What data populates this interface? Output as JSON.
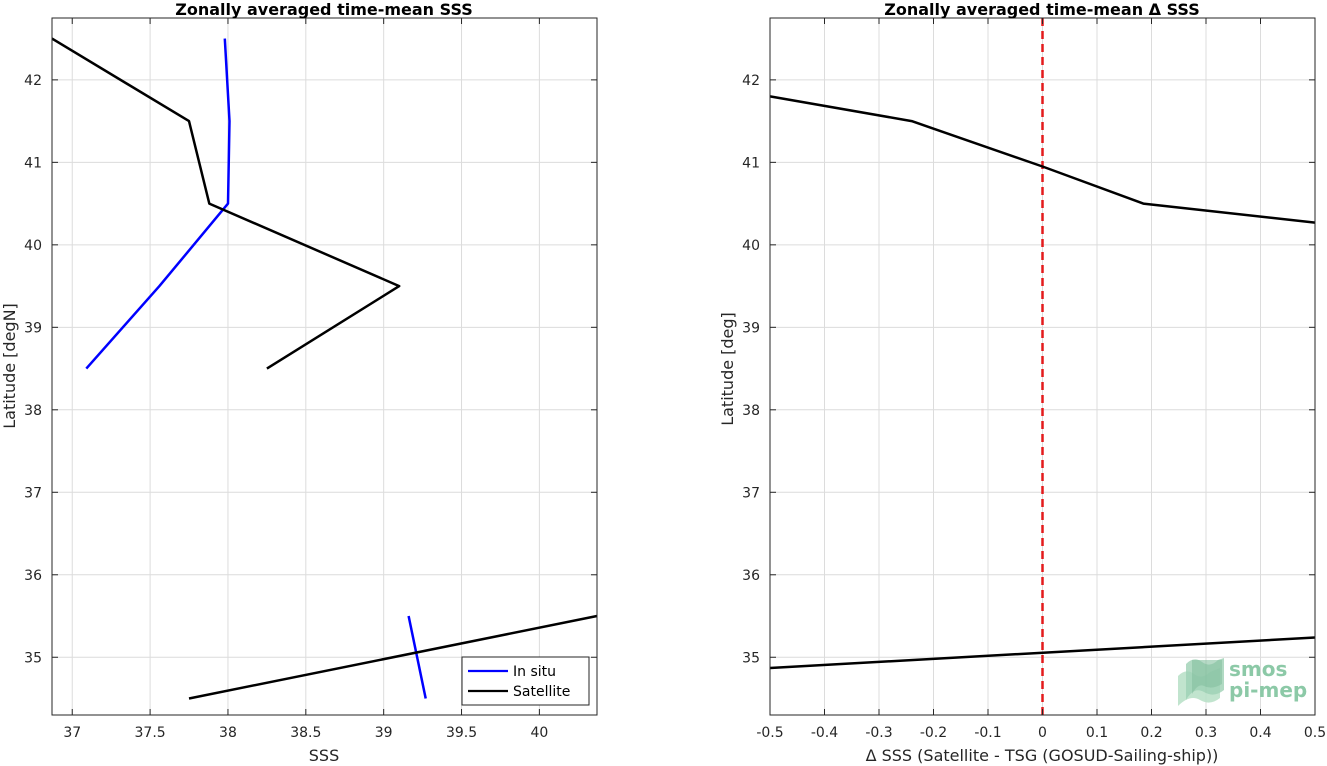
{
  "chart_data": [
    {
      "type": "line",
      "title": "Zonally averaged time-mean SSS",
      "xlabel": "SSS",
      "ylabel": "Latitude [degN]",
      "xlim": [
        36.87,
        40.37
      ],
      "ylim": [
        34.3,
        42.75
      ],
      "xticks": [
        37,
        37.5,
        38,
        38.5,
        39,
        39.5,
        40
      ],
      "yticks": [
        35,
        36,
        37,
        38,
        39,
        40,
        41,
        42
      ],
      "grid": true,
      "legend_position": "bottom-right",
      "series": [
        {
          "name": "In situ",
          "color": "#0000ff",
          "segments": [
            [
              {
                "x": 37.98,
                "y": 42.5
              },
              {
                "x": 38.01,
                "y": 41.5
              },
              {
                "x": 38.0,
                "y": 40.5
              },
              {
                "x": 37.56,
                "y": 39.5
              },
              {
                "x": 37.09,
                "y": 38.5
              }
            ],
            [
              {
                "x": 39.16,
                "y": 35.5
              },
              {
                "x": 39.27,
                "y": 34.5
              }
            ]
          ]
        },
        {
          "name": "Satellite",
          "color": "#000000",
          "segments": [
            [
              {
                "x": 36.87,
                "y": 42.5
              },
              {
                "x": 37.75,
                "y": 41.5
              },
              {
                "x": 37.88,
                "y": 40.5
              },
              {
                "x": 39.1,
                "y": 39.5
              },
              {
                "x": 38.25,
                "y": 38.5
              }
            ],
            [
              {
                "x": 37.75,
                "y": 34.5
              },
              {
                "x": 40.37,
                "y": 35.5
              }
            ]
          ]
        }
      ]
    },
    {
      "type": "line",
      "title": "Zonally averaged time-mean Δ SSS",
      "xlabel": "Δ SSS (Satellite - TSG (GOSUD-Sailing-ship))",
      "ylabel": "Latitude [deg]",
      "xlim": [
        -0.5,
        0.5
      ],
      "ylim": [
        34.3,
        42.75
      ],
      "xticks": [
        -0.5,
        -0.4,
        -0.3,
        -0.2,
        -0.1,
        0,
        0.1,
        0.2,
        0.3,
        0.4,
        0.5
      ],
      "xtick_labels": [
        "-0.5",
        "-0.4",
        "-0.3",
        "-0.2",
        "-0.1",
        "0",
        "0.1",
        "0.2",
        "0.3",
        "0.4",
        "0.5"
      ],
      "yticks": [
        35,
        36,
        37,
        38,
        39,
        40,
        41,
        42
      ],
      "grid": true,
      "reference_line": {
        "x": 0,
        "color": "#e31a1c",
        "style": "dashed"
      },
      "series": [
        {
          "color": "#000000",
          "segments": [
            [
              {
                "x": -0.5,
                "y": 41.8
              },
              {
                "x": -0.24,
                "y": 41.5
              },
              {
                "x": 0.0,
                "y": 40.95
              },
              {
                "x": 0.185,
                "y": 40.5
              },
              {
                "x": 0.5,
                "y": 40.27
              }
            ],
            [
              {
                "x": -0.5,
                "y": 34.87
              },
              {
                "x": 0.5,
                "y": 35.24
              }
            ]
          ]
        }
      ]
    }
  ],
  "logo": {
    "line1": "smos",
    "line2": "pi-mep",
    "color": "#8cc9a7"
  }
}
